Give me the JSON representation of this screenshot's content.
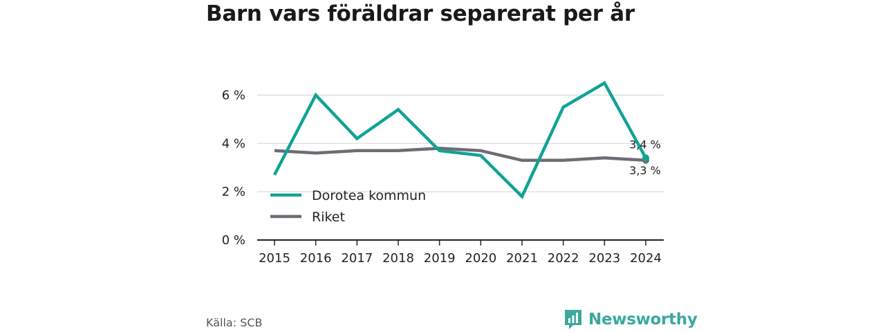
{
  "title": "Barn vars föräldrar separerat per år",
  "source": "Källa: SCB",
  "brand": {
    "name": "Newsworthy",
    "icon": "newsworthy-logo-icon"
  },
  "colors": {
    "dorotea": "#10a396",
    "riket": "#6e6d75",
    "grid": "#d9d9d9",
    "axis": "#222222"
  },
  "chart_data": {
    "type": "line",
    "title": "Barn vars föräldrar separerat per år",
    "categories": [
      "2015",
      "2016",
      "2017",
      "2018",
      "2019",
      "2020",
      "2021",
      "2022",
      "2023",
      "2024"
    ],
    "series": [
      {
        "name": "Dorotea kommun",
        "values": [
          2.7,
          6.0,
          4.2,
          5.4,
          3.7,
          3.5,
          1.8,
          5.5,
          6.5,
          3.4
        ],
        "end_label": "3,4 %"
      },
      {
        "name": "Riket",
        "values": [
          3.7,
          3.6,
          3.7,
          3.7,
          3.8,
          3.7,
          3.3,
          3.3,
          3.4,
          3.3
        ],
        "end_label": "3,3 %"
      }
    ],
    "yticks": [
      {
        "value": 0,
        "label": "0 %"
      },
      {
        "value": 2,
        "label": "2 %"
      },
      {
        "value": 4,
        "label": "4 %"
      },
      {
        "value": 6,
        "label": "6 %"
      }
    ],
    "ylim": [
      0,
      6.5
    ],
    "grid": true,
    "legend": "bottom-left"
  }
}
